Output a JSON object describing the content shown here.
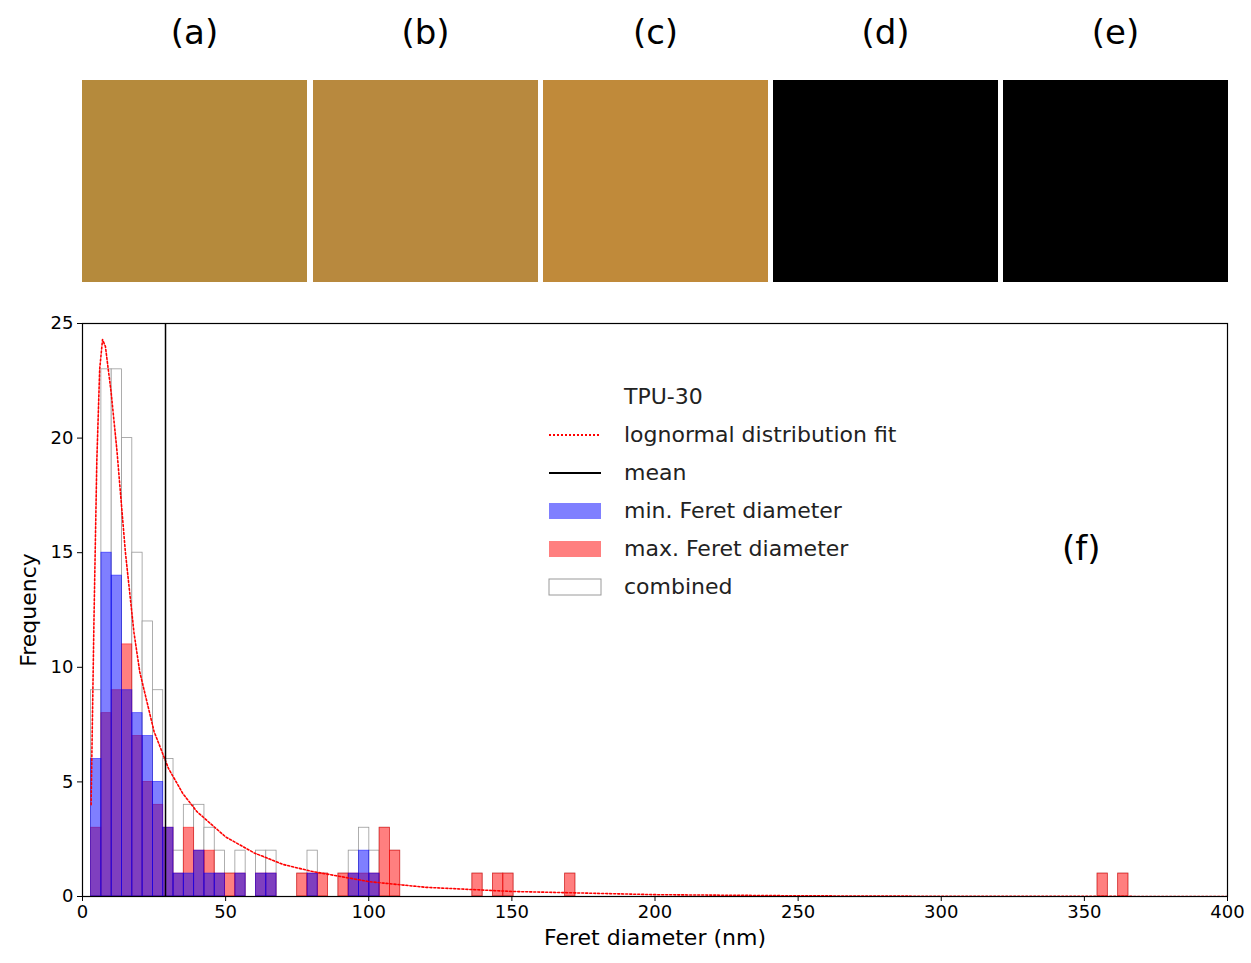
{
  "image_panels": [
    "(a)",
    "(b)",
    "(c)",
    "(d)",
    "(e)"
  ],
  "chart_data": {
    "type": "histogram",
    "x_label": "Feret diameter (nm)",
    "y_label": "Frequency",
    "legend_title": "TPU-30",
    "annotation": "(f)",
    "legend": "upper right",
    "xlim": [
      0,
      400
    ],
    "xticks": [
      0,
      50,
      100,
      150,
      200,
      250,
      300,
      350,
      400
    ],
    "ylim": [
      0,
      25
    ],
    "yticks": [
      0,
      5,
      10,
      15,
      20,
      25
    ],
    "bins": [
      3.0,
      6.6,
      10.2,
      13.8,
      17.4,
      21.0,
      24.6,
      28.2,
      31.8,
      35.4,
      39.0,
      42.6,
      46.2,
      49.8,
      53.4,
      57.0,
      60.6,
      64.2,
      67.8,
      71.4,
      75.0,
      78.6,
      82.2,
      85.8,
      89.4,
      93.0,
      96.6,
      100.2,
      103.8,
      107.4,
      111.0,
      114.6,
      118.2,
      121.8,
      125.4,
      129.0,
      132.6,
      136.2,
      139.8,
      143.4,
      147.0,
      150.6,
      154.2,
      157.8,
      161.4,
      165.0,
      168.6,
      172.2,
      175.8,
      354.6,
      358.2,
      361.8,
      365.4
    ],
    "series": [
      {
        "name": "lognormal distribution fit",
        "type": "line",
        "color": "#ff0000",
        "line_style": "dotted",
        "x": [
          3,
          4,
          5,
          6,
          7,
          8,
          10,
          12,
          15,
          18,
          20,
          25,
          30,
          35,
          40,
          50,
          60,
          70,
          80,
          100,
          120,
          150,
          200,
          250,
          300,
          400
        ],
        "values": [
          4,
          12,
          19,
          23,
          24.3,
          24,
          22,
          19.5,
          15,
          11.5,
          9.8,
          7.2,
          5.6,
          4.5,
          3.7,
          2.6,
          1.9,
          1.4,
          1.1,
          0.65,
          0.4,
          0.22,
          0.08,
          0.03,
          0.01,
          0
        ]
      },
      {
        "name": "mean",
        "type": "rule",
        "color": "#000000",
        "line_style": "solid",
        "value": 29
      },
      {
        "name": "min. Feret diameter",
        "type": "bar",
        "color": "#0000ff",
        "values": [
          6,
          15,
          14,
          9,
          8,
          7,
          5,
          3,
          1,
          1,
          2,
          1,
          1,
          0,
          1,
          0,
          1,
          1,
          0,
          0,
          0,
          1,
          0,
          0,
          0,
          1,
          2,
          1,
          0,
          0,
          0,
          0,
          0,
          0,
          0,
          0,
          0,
          0,
          0,
          0,
          0,
          0,
          0,
          0,
          0,
          0,
          0,
          0,
          0,
          0,
          0,
          0
        ]
      },
      {
        "name": "max. Feret diameter",
        "type": "bar",
        "color": "#ff0000",
        "values": [
          3,
          8,
          9,
          11,
          7,
          5,
          4,
          3,
          1,
          3,
          2,
          2,
          1,
          1,
          1,
          0,
          1,
          1,
          0,
          0,
          1,
          1,
          1,
          0,
          1,
          1,
          1,
          1,
          3,
          2,
          0,
          0,
          0,
          0,
          0,
          0,
          0,
          1,
          0,
          1,
          1,
          0,
          0,
          0,
          0,
          0,
          1,
          0,
          0,
          1,
          0,
          1
        ]
      },
      {
        "name": "combined",
        "type": "bar",
        "color": "#ffffff",
        "values": [
          9,
          23,
          23,
          20,
          15,
          12,
          9,
          6,
          2,
          4,
          4,
          3,
          2,
          1,
          2,
          0,
          2,
          2,
          0,
          0,
          1,
          2,
          1,
          0,
          1,
          2,
          3,
          2,
          3,
          2,
          0,
          0,
          0,
          0,
          0,
          0,
          0,
          1,
          0,
          1,
          1,
          0,
          0,
          0,
          0,
          0,
          1,
          0,
          0,
          1,
          0,
          1
        ]
      }
    ]
  }
}
